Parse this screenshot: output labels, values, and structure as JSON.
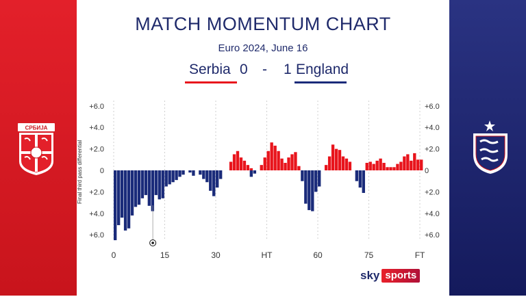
{
  "title": "MATCH MOMENTUM CHART",
  "subtitle": "Euro 2024, June 16",
  "score": {
    "home_team": "Serbia",
    "home_goals": "0",
    "separator": "-",
    "away_goals": "1",
    "away_team": "England"
  },
  "colors": {
    "home": "#e8141c",
    "away": "#1a2b7a",
    "title": "#1f2a6b",
    "serbia_bg": "#d6181f",
    "england_bg": "#1e2670"
  },
  "branding": {
    "sky": "sky",
    "sports": "sports"
  },
  "icons": {
    "home_crest": "serbia-crest-icon",
    "away_crest": "england-crest-icon",
    "goal_marker": "football-icon"
  },
  "home_crest_text": "СРБИЈА",
  "chart_data": {
    "type": "bar",
    "ylabel": "Final third pass differential",
    "ylim": [
      -6.0,
      6.0
    ],
    "yticks": [
      "+6.0",
      "+4.0",
      "+2.0",
      "0",
      "+2.0",
      "+4.0",
      "+6.0"
    ],
    "xticks": [
      "0",
      "15",
      "30",
      "HT",
      "60",
      "75",
      "FT"
    ],
    "goal_minute": 11,
    "series": [
      {
        "team": "England",
        "values": [
          -6.5,
          -5.1,
          -4.4,
          -5.6,
          -5.4,
          -4.2,
          -3.4,
          -3.2,
          -2.6,
          -2.3,
          -3.3,
          -3.8,
          -2.3,
          -2.7,
          -2.6,
          -1.5,
          -1.3,
          -1.1,
          -0.9,
          -0.6,
          -0.4,
          null,
          -0.2,
          -0.5,
          null,
          -0.4,
          -0.8,
          -1.1,
          -1.9,
          -2.4,
          -1.6,
          -0.8,
          null,
          null,
          null,
          null,
          null,
          null,
          null,
          null,
          -0.6,
          -0.3,
          null,
          null,
          null,
          null,
          null,
          null,
          null,
          null,
          null,
          null,
          null,
          null,
          null,
          -1.0,
          -3.1,
          -3.7,
          -3.8,
          -2.0,
          -1.5,
          null,
          null,
          null,
          null,
          null,
          null,
          null,
          null,
          null,
          null,
          -1.0,
          -1.6,
          -2.1,
          null,
          null,
          null,
          null,
          null,
          null,
          null,
          null,
          null,
          null,
          null,
          null,
          null,
          null,
          null,
          null
        ]
      },
      {
        "team": "Serbia",
        "values": [
          null,
          null,
          null,
          null,
          null,
          null,
          null,
          null,
          null,
          null,
          null,
          null,
          null,
          null,
          null,
          null,
          null,
          null,
          null,
          null,
          null,
          null,
          null,
          null,
          null,
          null,
          null,
          null,
          null,
          null,
          null,
          null,
          null,
          null,
          0.8,
          1.5,
          1.8,
          1.2,
          0.9,
          0.5,
          0.2,
          null,
          null,
          0.5,
          1.2,
          1.8,
          2.6,
          2.3,
          1.8,
          1.1,
          0.7,
          1.2,
          1.5,
          1.7,
          0.4,
          null,
          null,
          null,
          null,
          null,
          null,
          null,
          0.5,
          1.3,
          2.4,
          2.0,
          1.9,
          1.3,
          1.1,
          0.8,
          null,
          null,
          null,
          null,
          0.7,
          0.8,
          0.6,
          0.9,
          1.1,
          0.7,
          0.3,
          0.3,
          0.3,
          0.6,
          0.8,
          1.3,
          1.5,
          0.9,
          1.6,
          1.0,
          1.0
        ]
      }
    ]
  }
}
